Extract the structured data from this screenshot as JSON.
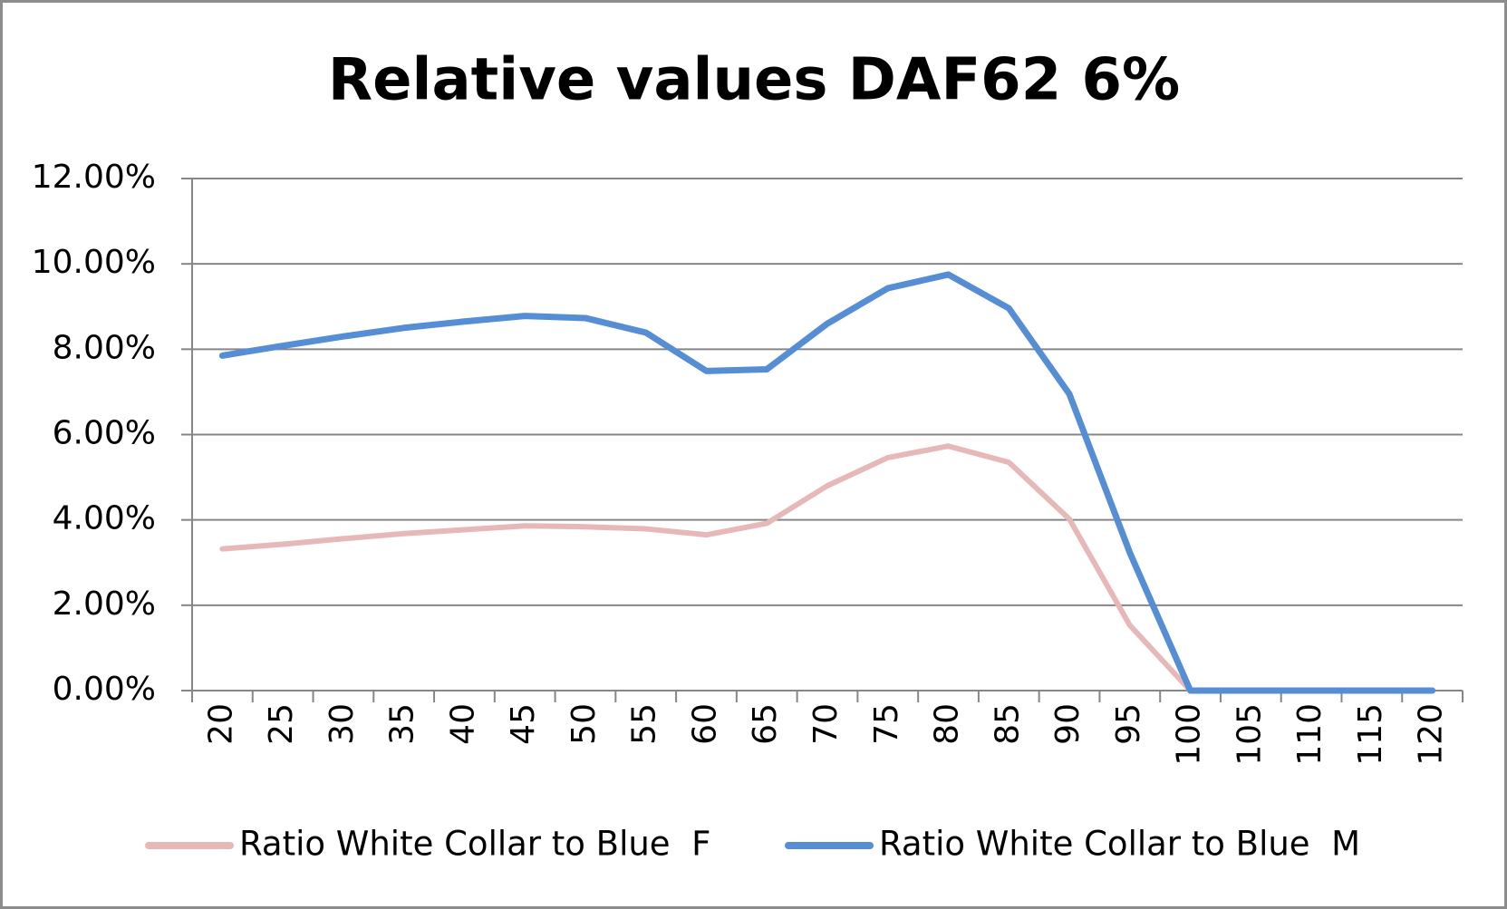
{
  "chart_data": {
    "type": "line",
    "title": "Relative values DAF62 6%",
    "categories": [
      "20",
      "25",
      "30",
      "35",
      "40",
      "45",
      "50",
      "55",
      "60",
      "65",
      "70",
      "75",
      "80",
      "85",
      "90",
      "95",
      "100",
      "105",
      "110",
      "115",
      "120"
    ],
    "series": [
      {
        "name": "Ratio White Collar to Blue  F",
        "color": "#e6b9b8",
        "values": [
          3.32,
          3.43,
          3.56,
          3.68,
          3.77,
          3.86,
          3.84,
          3.79,
          3.65,
          3.92,
          4.8,
          5.46,
          5.73,
          5.35,
          4.02,
          1.53,
          0,
          null,
          null,
          null,
          null
        ]
      },
      {
        "name": "Ratio White Collar to Blue  M",
        "color": "#558ed5",
        "values": [
          7.85,
          8.08,
          8.3,
          8.5,
          8.65,
          8.78,
          8.73,
          8.39,
          7.49,
          7.53,
          8.6,
          9.43,
          9.75,
          8.96,
          6.95,
          3.23,
          0,
          0,
          0,
          0,
          0
        ]
      }
    ],
    "ylim": [
      0,
      12
    ],
    "yticks": [
      {
        "value": 0,
        "label": "0.00%"
      },
      {
        "value": 2,
        "label": "2.00%"
      },
      {
        "value": 4,
        "label": "4.00%"
      },
      {
        "value": 6,
        "label": "6.00%"
      },
      {
        "value": 8,
        "label": "8.00%"
      },
      {
        "value": 10,
        "label": "10.00%"
      },
      {
        "value": 12,
        "label": "12.00%"
      }
    ],
    "grid": true,
    "legend": "bottom"
  }
}
